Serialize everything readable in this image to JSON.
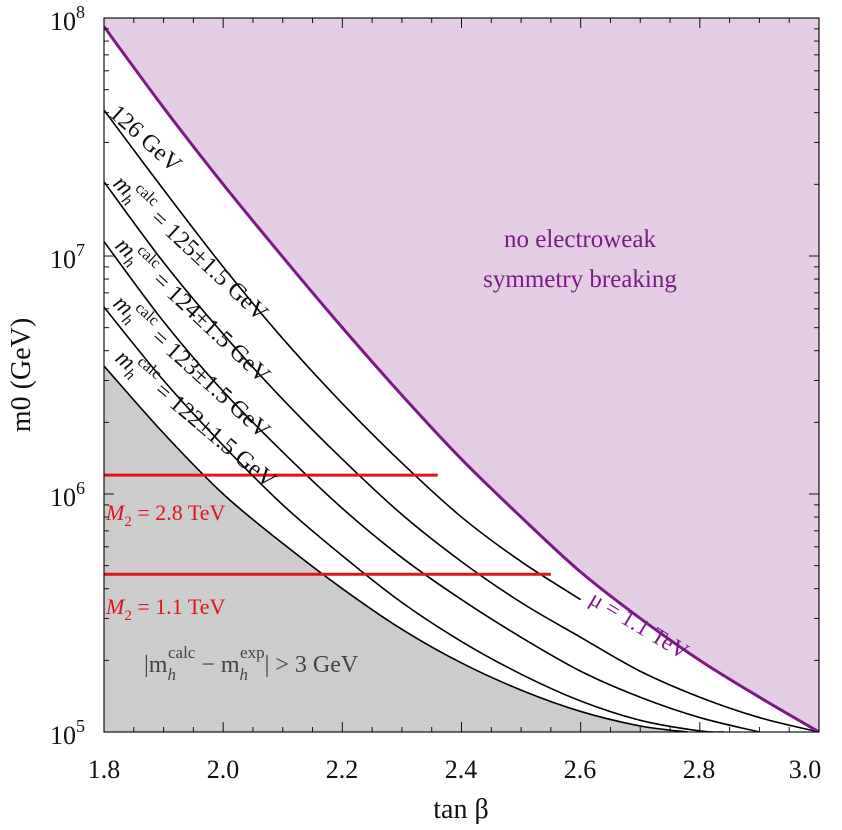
{
  "chart_data": {
    "type": "line",
    "xlabel": "tan β",
    "ylabel": "m0 (GeV)",
    "xlim": [
      1.8,
      3.0
    ],
    "ylim": [
      100000,
      100000000
    ],
    "yscale": "log",
    "x_ticks": [
      "1.8",
      "2.0",
      "2.2",
      "2.4",
      "2.6",
      "2.8",
      "3.0"
    ],
    "y_ticks": [
      {
        "base": "10",
        "exp": "5"
      },
      {
        "base": "10",
        "exp": "6"
      },
      {
        "base": "10",
        "exp": "7"
      },
      {
        "base": "10",
        "exp": "8"
      }
    ],
    "colors": {
      "ewsb_fill": "#e4cce4",
      "ewsb_line": "#7b1a85",
      "excluded_fill": "#cccccc",
      "m2_line": "#e0141c",
      "curve": "#000000"
    },
    "regions": {
      "ewsb_label_1": "no electroweak",
      "ewsb_label_2": "symmetry breaking",
      "excluded_label": "|m_h^calc − m_h^exp| > 3 GeV",
      "excluded_main": "|m",
      "excluded_sub1": "h",
      "excluded_sup1": "calc",
      "excluded_mid": " − m",
      "excluded_sub2": "h",
      "excluded_sup2": "exp",
      "excluded_tail": "| > 3 GeV"
    },
    "mu_line": {
      "name": "μ = 1.1 TeV",
      "x": [
        1.8,
        1.9,
        2.0,
        2.1,
        2.2,
        2.3,
        2.4,
        2.5,
        2.6,
        2.7,
        2.8,
        2.9,
        3.0
      ],
      "y": [
        92000000,
        42000000,
        20000000,
        9900000,
        5000000,
        2600000,
        1400000,
        800000,
        470000,
        300000,
        200000,
        140000,
        100000
      ]
    },
    "series": [
      {
        "name": "126 GeV",
        "x": [
          1.8,
          1.9,
          2.0,
          2.1,
          2.2,
          2.3,
          2.4,
          2.5,
          2.6
        ],
        "y": [
          41000000,
          19000000,
          9000000,
          4500000,
          2400000,
          1350000,
          800000,
          520000,
          360000
        ]
      },
      {
        "name": "m_h^calc = 125±1.5 GeV",
        "label_prefix": "m",
        "label_sub": "h",
        "label_sup": "calc",
        "label_rest": " = 125±1.5 GeV",
        "x": [
          1.8,
          1.9,
          2.0,
          2.1,
          2.2,
          2.3,
          2.4,
          2.5,
          2.6,
          2.7,
          2.8,
          2.9,
          3.0
        ],
        "y": [
          20500000,
          9400000,
          4700000,
          2500000,
          1400000,
          820000,
          520000,
          350000,
          250000,
          180000,
          140000,
          115000,
          100000
        ]
      },
      {
        "name": "m_h^calc = 124±1.5 GeV",
        "label_prefix": "m",
        "label_sub": "h",
        "label_sup": "calc",
        "label_rest": " = 124±1.5 GeV",
        "x": [
          1.8,
          1.9,
          2.0,
          2.1,
          2.2,
          2.3,
          2.4,
          2.5,
          2.6,
          2.7,
          2.8,
          2.9
        ],
        "y": [
          11500000,
          5300000,
          2700000,
          1500000,
          870000,
          540000,
          360000,
          250000,
          180000,
          140000,
          115000,
          100000
        ]
      },
      {
        "name": "m_h^calc = 123±1.5 GeV",
        "label_prefix": "m",
        "label_sub": "h",
        "label_sup": "calc",
        "label_rest": " = 123±1.5 GeV",
        "x": [
          1.8,
          1.9,
          2.0,
          2.1,
          2.2,
          2.3,
          2.4,
          2.5,
          2.6,
          2.7,
          2.8,
          2.84
        ],
        "y": [
          6100000,
          3000000,
          1600000,
          900000,
          550000,
          350000,
          240000,
          175000,
          135000,
          112000,
          101000,
          100000
        ]
      },
      {
        "name": "m_h^calc = 122±1.5 GeV",
        "label_prefix": "m",
        "label_sub": "h",
        "label_sup": "calc",
        "label_rest": " = 122±1.5 GeV",
        "x": [
          1.8,
          1.9,
          2.0,
          2.1,
          2.2,
          2.3,
          2.4,
          2.5,
          2.6,
          2.7,
          2.78
        ],
        "y": [
          3450000,
          1800000,
          1000000,
          620000,
          400000,
          270000,
          195000,
          150000,
          122000,
          106000,
          100000
        ]
      }
    ],
    "hlines": [
      {
        "name": "M2 = 2.8 TeV",
        "label_main": "M",
        "label_sub": "2",
        "label_rest": " = 2.8 TeV",
        "y": 1200000,
        "x": [
          1.8,
          2.36
        ]
      },
      {
        "name": "M2 = 1.1 TeV",
        "label_main": "M",
        "label_sub": "2",
        "label_rest": " = 1.1 TeV",
        "y": 460000,
        "x": [
          1.8,
          2.55
        ]
      }
    ]
  }
}
